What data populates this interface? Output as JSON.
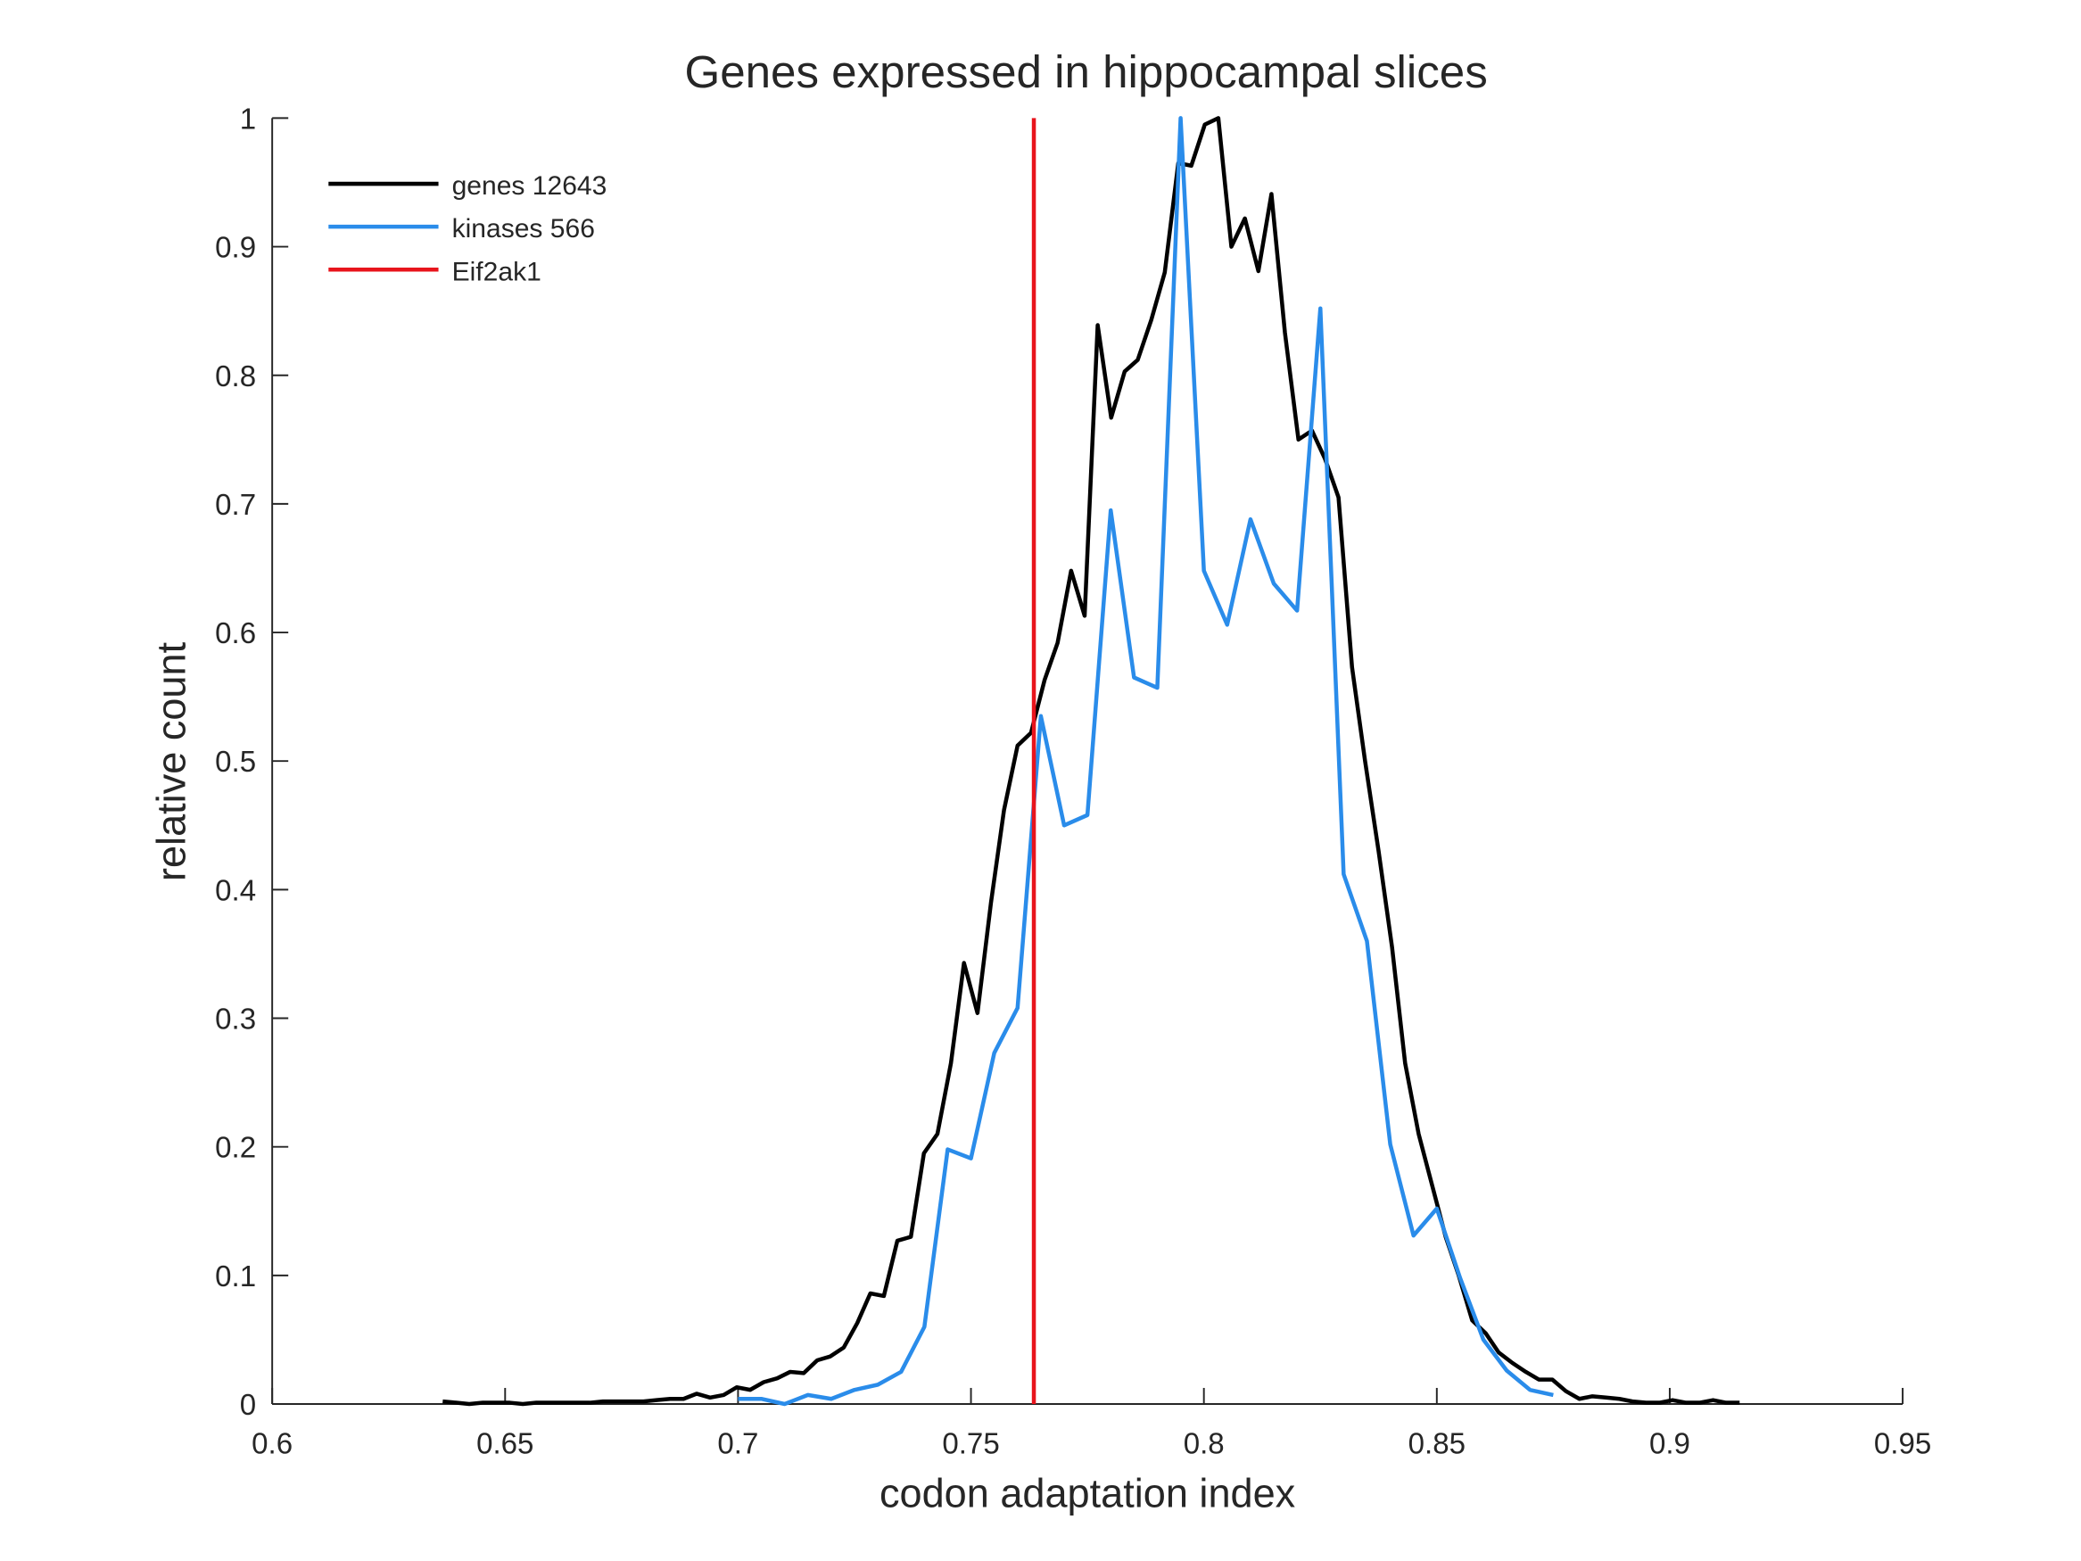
{
  "chart_data": {
    "type": "line",
    "title": "Genes expressed in hippocampal slices",
    "xlabel": "codon adaptation index",
    "ylabel": "relative count",
    "xlim": [
      0.6,
      0.95
    ],
    "xticks": [
      0.6,
      0.65,
      0.7,
      0.75,
      0.8,
      0.85,
      0.9,
      0.95
    ],
    "ylim": [
      0,
      1
    ],
    "yticks": [
      0,
      0.1,
      0.2,
      0.3,
      0.4,
      0.5,
      0.6,
      0.7,
      0.8,
      0.9,
      1
    ],
    "legend": "upper-left",
    "series": [
      {
        "name": "genes 12643",
        "color": "#000000",
        "x": [
          0.6366,
          0.6395,
          0.6423,
          0.6452,
          0.6481,
          0.651,
          0.6538,
          0.6567,
          0.6596,
          0.6624,
          0.6653,
          0.6682,
          0.671,
          0.6739,
          0.6768,
          0.6797,
          0.6825,
          0.6854,
          0.6883,
          0.6911,
          0.694,
          0.6969,
          0.6997,
          0.7026,
          0.7055,
          0.7084,
          0.7112,
          0.7141,
          0.717,
          0.7198,
          0.7227,
          0.7256,
          0.7284,
          0.7313,
          0.7342,
          0.7371,
          0.7399,
          0.7428,
          0.7457,
          0.7485,
          0.7514,
          0.7543,
          0.7571,
          0.76,
          0.7629,
          0.7658,
          0.7686,
          0.7715,
          0.7744,
          0.7772,
          0.7801,
          0.783,
          0.7858,
          0.7887,
          0.7916,
          0.7945,
          0.7973,
          0.8002,
          0.8031,
          0.8059,
          0.8088,
          0.8117,
          0.8145,
          0.8174,
          0.8203,
          0.8232,
          0.826,
          0.8289,
          0.8318,
          0.8346,
          0.8375,
          0.8404,
          0.8432,
          0.8461,
          0.849,
          0.8519,
          0.8547,
          0.8576,
          0.8605,
          0.8633,
          0.8662,
          0.8691,
          0.8719,
          0.8748,
          0.8777,
          0.8806,
          0.8834,
          0.8863,
          0.8892,
          0.892,
          0.8949,
          0.8978,
          0.9006,
          0.9035,
          0.9064,
          0.9093,
          0.9121,
          0.915
        ],
        "values": [
          0.002,
          0.001,
          0,
          0.001,
          0.001,
          0.001,
          0,
          0.001,
          0.001,
          0.001,
          0.001,
          0.001,
          0.002,
          0.002,
          0.002,
          0.002,
          0.003,
          0.004,
          0.004,
          0.008,
          0.005,
          0.007,
          0.013,
          0.011,
          0.017,
          0.02,
          0.025,
          0.024,
          0.034,
          0.037,
          0.044,
          0.063,
          0.086,
          0.084,
          0.127,
          0.13,
          0.195,
          0.21,
          0.265,
          0.343,
          0.304,
          0.39,
          0.462,
          0.512,
          0.522,
          0.563,
          0.592,
          0.648,
          0.613,
          0.839,
          0.767,
          0.803,
          0.812,
          0.843,
          0.88,
          0.965,
          0.963,
          0.995,
          1.0,
          0.9,
          0.922,
          0.881,
          0.941,
          0.833,
          0.75,
          0.757,
          0.735,
          0.705,
          0.573,
          0.5,
          0.43,
          0.355,
          0.265,
          0.21,
          0.17,
          0.13,
          0.1,
          0.065,
          0.055,
          0.04,
          0.032,
          0.025,
          0.019,
          0.019,
          0.01,
          0.004,
          0.006,
          0.005,
          0.004,
          0.002,
          0.001,
          0.001,
          0.003,
          0.001,
          0.001,
          0.003,
          0.001,
          0.001
        ]
      },
      {
        "name": "kinases 566",
        "color": "#2a8cea",
        "x": [
          0.7,
          0.705,
          0.71,
          0.715,
          0.72,
          0.725,
          0.73,
          0.735,
          0.74,
          0.745,
          0.75,
          0.755,
          0.76,
          0.765,
          0.77,
          0.775,
          0.78,
          0.785,
          0.79,
          0.795,
          0.8,
          0.805,
          0.81,
          0.815,
          0.82,
          0.825,
          0.83,
          0.835,
          0.84,
          0.845,
          0.85,
          0.855,
          0.86,
          0.865,
          0.87,
          0.875
        ],
        "values": [
          0.004,
          0.004,
          0,
          0.007,
          0.004,
          0.011,
          0.015,
          0.025,
          0.06,
          0.198,
          0.191,
          0.273,
          0.308,
          0.535,
          0.45,
          0.458,
          0.695,
          0.565,
          0.557,
          1.0,
          0.648,
          0.606,
          0.688,
          0.638,
          0.617,
          0.852,
          0.412,
          0.36,
          0.202,
          0.131,
          0.152,
          0.098,
          0.05,
          0.026,
          0.011,
          0.007
        ]
      },
      {
        "name": "Eif2ak1",
        "color": "#e8141c",
        "x": [
          0.7635,
          0.7635
        ],
        "values": [
          0,
          1
        ]
      }
    ]
  }
}
